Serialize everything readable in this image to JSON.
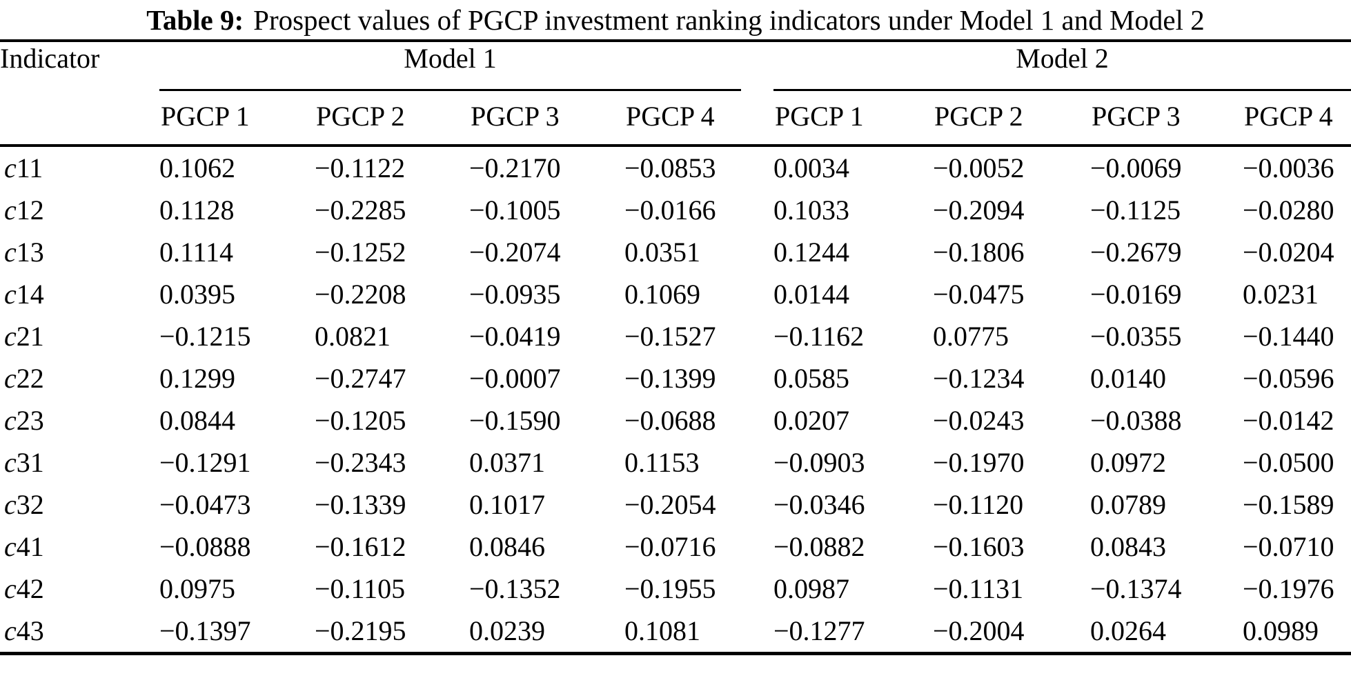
{
  "title": {
    "label": "Table 9:",
    "text": "Prospect values of PGCP investment ranking indicators under Model 1 and Model 2"
  },
  "table": {
    "indicator_header": "Indicator",
    "group_headers": {
      "model1": "Model 1",
      "model2": "Model 2"
    },
    "pgcp_headers": [
      "PGCP 1",
      "PGCP 2",
      "PGCP 3",
      "PGCP 4"
    ],
    "rows": [
      {
        "indicator": "c11",
        "model1": [
          "0.1062",
          "−0.1122",
          "−0.2170",
          "−0.0853"
        ],
        "model2": [
          "0.0034",
          "−0.0052",
          "−0.0069",
          "−0.0036"
        ]
      },
      {
        "indicator": "c12",
        "model1": [
          "0.1128",
          "−0.2285",
          "−0.1005",
          "−0.0166"
        ],
        "model2": [
          "0.1033",
          "−0.2094",
          "−0.1125",
          "−0.0280"
        ]
      },
      {
        "indicator": "c13",
        "model1": [
          "0.1114",
          "−0.1252",
          "−0.2074",
          "0.0351"
        ],
        "model2": [
          "0.1244",
          "−0.1806",
          "−0.2679",
          "−0.0204"
        ]
      },
      {
        "indicator": "c14",
        "model1": [
          "0.0395",
          "−0.2208",
          "−0.0935",
          "0.1069"
        ],
        "model2": [
          "0.0144",
          "−0.0475",
          "−0.0169",
          "0.0231"
        ]
      },
      {
        "indicator": "c21",
        "model1": [
          "−0.1215",
          "0.0821",
          "−0.0419",
          "−0.1527"
        ],
        "model2": [
          "−0.1162",
          "0.0775",
          "−0.0355",
          "−0.1440"
        ]
      },
      {
        "indicator": "c22",
        "model1": [
          "0.1299",
          "−0.2747",
          "−0.0007",
          "−0.1399"
        ],
        "model2": [
          "0.0585",
          "−0.1234",
          "0.0140",
          "−0.0596"
        ]
      },
      {
        "indicator": "c23",
        "model1": [
          "0.0844",
          "−0.1205",
          "−0.1590",
          "−0.0688"
        ],
        "model2": [
          "0.0207",
          "−0.0243",
          "−0.0388",
          "−0.0142"
        ]
      },
      {
        "indicator": "c31",
        "model1": [
          "−0.1291",
          "−0.2343",
          "0.0371",
          "0.1153"
        ],
        "model2": [
          "−0.0903",
          "−0.1970",
          "0.0972",
          "−0.0500"
        ]
      },
      {
        "indicator": "c32",
        "model1": [
          "−0.0473",
          "−0.1339",
          "0.1017",
          "−0.2054"
        ],
        "model2": [
          "−0.0346",
          "−0.1120",
          "0.0789",
          "−0.1589"
        ]
      },
      {
        "indicator": "c41",
        "model1": [
          "−0.0888",
          "−0.1612",
          "0.0846",
          "−0.0716"
        ],
        "model2": [
          "−0.0882",
          "−0.1603",
          "0.0843",
          "−0.0710"
        ]
      },
      {
        "indicator": "c42",
        "model1": [
          "0.0975",
          "−0.1105",
          "−0.1352",
          "−0.1955"
        ],
        "model2": [
          "0.0987",
          "−0.1131",
          "−0.1374",
          "−0.1976"
        ]
      },
      {
        "indicator": "c43",
        "model1": [
          "−0.1397",
          "−0.2195",
          "0.0239",
          "0.1081"
        ],
        "model2": [
          "−0.1277",
          "−0.2004",
          "0.0264",
          "0.0989"
        ]
      }
    ]
  },
  "colors": {
    "background": "#ffffff",
    "text": "#000000",
    "rule": "#000000"
  }
}
